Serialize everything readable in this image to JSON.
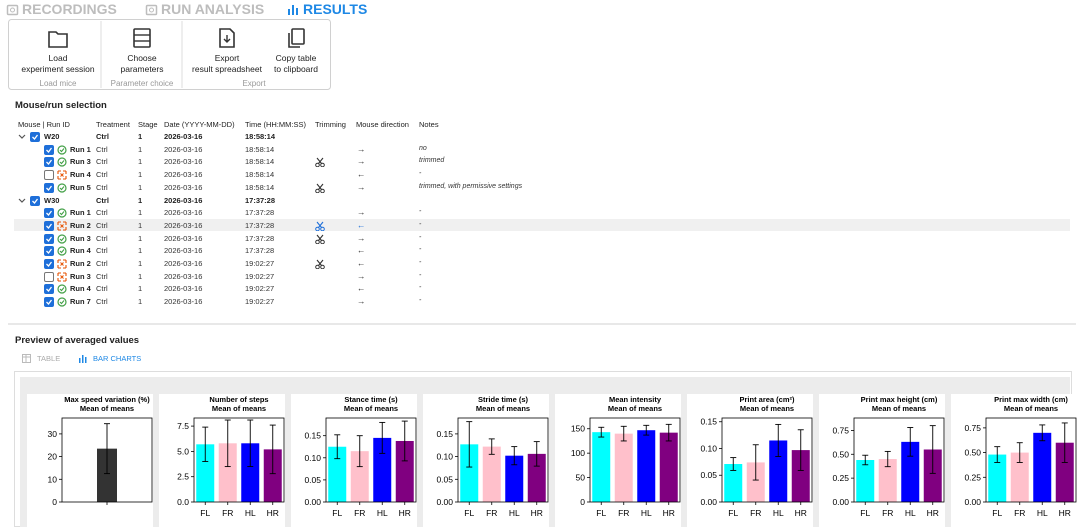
{
  "tabs": [
    "RECORDINGS",
    "RUN ANALYSIS",
    "RESULTS"
  ],
  "active_tab": 2,
  "ribbon": [
    {
      "label": "Load mice",
      "buttons": [
        [
          "Load",
          "experiment session"
        ]
      ]
    },
    {
      "label": "Parameter choice",
      "buttons": [
        [
          "Choose",
          "parameters"
        ]
      ]
    },
    {
      "label": "Export",
      "buttons": [
        [
          "Export",
          "result spreadsheet"
        ],
        [
          "Copy table",
          "to clipboard"
        ]
      ]
    }
  ],
  "selection": {
    "title": "Mouse/run selection",
    "columns": [
      "Mouse | Run ID",
      "Treatment",
      "Stage",
      "Date (YYYY-MM-DD)",
      "Time (HH:MM:SS)",
      "Trimming",
      "Mouse direction",
      "Notes"
    ],
    "mice": [
      {
        "id": "W20",
        "treatment": "Ctrl",
        "stage": 1,
        "date": "2026-03-16",
        "time": "18:58:14",
        "runs": [
          {
            "id": "Run 1",
            "checked": true,
            "ok": true,
            "treatment": "Ctrl",
            "stage": 1,
            "date": "2026-03-16",
            "time": "18:58:14",
            "trimmed": false,
            "direction": "→",
            "notes": "no"
          },
          {
            "id": "Run 3",
            "checked": true,
            "ok": true,
            "treatment": "Ctrl",
            "stage": 1,
            "date": "2026-03-16",
            "time": "18:58:14",
            "trimmed": true,
            "direction": "→",
            "notes": "trimmed"
          },
          {
            "id": "Run 4",
            "checked": false,
            "ok": false,
            "treatment": "Ctrl",
            "stage": 1,
            "date": "2026-03-16",
            "time": "18:58:14",
            "trimmed": false,
            "direction": "←",
            "notes": "-"
          },
          {
            "id": "Run 5",
            "checked": true,
            "ok": true,
            "treatment": "Ctrl",
            "stage": 1,
            "date": "2026-03-16",
            "time": "18:58:14",
            "trimmed": true,
            "direction": "→",
            "notes": "trimmed, with permissive settings"
          }
        ]
      },
      {
        "id": "W30",
        "treatment": "Ctrl",
        "stage": 1,
        "date": "2026-03-16",
        "time": "17:37:28",
        "runs": [
          {
            "id": "Run 1",
            "checked": true,
            "ok": true,
            "treatment": "Ctrl",
            "stage": 1,
            "date": "2026-03-16",
            "time": "17:37:28",
            "trimmed": false,
            "direction": "→",
            "notes": "-"
          },
          {
            "id": "Run 2",
            "checked": true,
            "ok": false,
            "treatment": "Ctrl",
            "stage": 1,
            "date": "2026-03-16",
            "time": "17:37:28",
            "trimmed": true,
            "direction": "←",
            "notes": "-",
            "highlighted": true
          },
          {
            "id": "Run 3",
            "checked": true,
            "ok": true,
            "treatment": "Ctrl",
            "stage": 1,
            "date": "2026-03-16",
            "time": "17:37:28",
            "trimmed": true,
            "direction": "→",
            "notes": "-"
          },
          {
            "id": "Run 4",
            "checked": true,
            "ok": true,
            "treatment": "Ctrl",
            "stage": 1,
            "date": "2026-03-16",
            "time": "17:37:28",
            "trimmed": false,
            "direction": "←",
            "notes": "-"
          },
          {
            "id": "Run 2",
            "checked": true,
            "ok": false,
            "treatment": "Ctrl",
            "stage": 1,
            "date": "2026-03-16",
            "time": "19:02:27",
            "trimmed": true,
            "direction": "←",
            "notes": "-"
          },
          {
            "id": "Run 3",
            "checked": false,
            "ok": false,
            "treatment": "Ctrl",
            "stage": 1,
            "date": "2026-03-16",
            "time": "19:02:27",
            "trimmed": false,
            "direction": "→",
            "notes": "-"
          },
          {
            "id": "Run 4",
            "checked": true,
            "ok": true,
            "treatment": "Ctrl",
            "stage": 1,
            "date": "2026-03-16",
            "time": "19:02:27",
            "trimmed": false,
            "direction": "←",
            "notes": "-"
          },
          {
            "id": "Run 7",
            "checked": true,
            "ok": true,
            "treatment": "Ctrl",
            "stage": 1,
            "date": "2026-03-16",
            "time": "19:02:27",
            "trimmed": false,
            "direction": "→",
            "notes": "-"
          }
        ]
      }
    ]
  },
  "preview": {
    "title": "Preview of averaged values",
    "views": [
      "TABLE",
      "BAR CHARTS"
    ],
    "active_view": 1
  },
  "chart_data": [
    {
      "type": "bar",
      "title": "Max speed variation (%)",
      "subtitle": "Mean of means",
      "categories": [
        null
      ],
      "values": [
        23.5
      ],
      "errors": [
        11
      ],
      "colors": [
        "#333333"
      ],
      "ylim": [
        0,
        37
      ],
      "yticks": [
        0,
        10,
        20,
        30
      ]
    },
    {
      "type": "bar",
      "title": "Number of steps",
      "subtitle": "Mean of means",
      "categories": [
        "FL",
        "FR",
        "HL",
        "HR"
      ],
      "values": [
        5.7,
        5.8,
        5.8,
        5.2
      ],
      "errors": [
        1.7,
        2.3,
        2.3,
        2.4
      ],
      "colors": [
        "#00ffff",
        "#ffc0cb",
        "#0000ff",
        "#800080"
      ],
      "ylim": [
        0,
        8.3
      ],
      "yticks": [
        {
          "value": 0,
          "label": "0.0"
        },
        2.5,
        {
          "value": 5,
          "label": "5.0"
        },
        7.5
      ]
    },
    {
      "type": "bar",
      "title": "Stance time (s)",
      "subtitle": "Mean of means",
      "categories": [
        "FL",
        "FR",
        "HL",
        "HR"
      ],
      "values": [
        0.125,
        0.115,
        0.145,
        0.138
      ],
      "errors": [
        0.027,
        0.035,
        0.035,
        0.045
      ],
      "colors": [
        "#00ffff",
        "#ffc0cb",
        "#0000ff",
        "#800080"
      ],
      "ylim": [
        0,
        0.19
      ],
      "yticks": [
        {
          "value": 0,
          "label": "0.00"
        },
        0.05,
        {
          "value": 0.1,
          "label": "0.10"
        },
        0.15
      ]
    },
    {
      "type": "bar",
      "title": "Stride time (s)",
      "subtitle": "Mean of means",
      "categories": [
        "FL",
        "FR",
        "HL",
        "HR"
      ],
      "values": [
        0.127,
        0.122,
        0.102,
        0.106
      ],
      "errors": [
        0.05,
        0.017,
        0.02,
        0.027
      ],
      "colors": [
        "#00ffff",
        "#ffc0cb",
        "#0000ff",
        "#800080"
      ],
      "ylim": [
        0,
        0.185
      ],
      "yticks": [
        {
          "value": 0,
          "label": "0.00"
        },
        0.05,
        {
          "value": 0.1,
          "label": "0.10"
        },
        0.15
      ]
    },
    {
      "type": "bar",
      "title": "Mean intensity",
      "subtitle": "Mean of means",
      "categories": [
        "FL",
        "FR",
        "HL",
        "HR"
      ],
      "values": [
        143,
        140,
        147,
        142
      ],
      "errors": [
        10,
        15,
        10,
        17
      ],
      "colors": [
        "#00ffff",
        "#ffc0cb",
        "#0000ff",
        "#800080"
      ],
      "ylim": [
        0,
        172
      ],
      "yticks": [
        0,
        50,
        100,
        150
      ]
    },
    {
      "type": "bar",
      "title": "Print area (cm²)",
      "subtitle": "Mean of means",
      "categories": [
        "FL",
        "FR",
        "HL",
        "HR"
      ],
      "values": [
        0.071,
        0.074,
        0.115,
        0.097
      ],
      "errors": [
        0.012,
        0.033,
        0.03,
        0.038
      ],
      "colors": [
        "#00ffff",
        "#ffc0cb",
        "#0000ff",
        "#800080"
      ],
      "ylim": [
        0,
        0.157
      ],
      "yticks": [
        {
          "value": 0,
          "label": "0.00"
        },
        0.05,
        {
          "value": 0.1,
          "label": "0.10"
        },
        0.15
      ]
    },
    {
      "type": "bar",
      "title": "Print max height (cm)",
      "subtitle": "Mean of means",
      "categories": [
        "FL",
        "FR",
        "HL",
        "HR"
      ],
      "values": [
        0.44,
        0.45,
        0.63,
        0.55
      ],
      "errors": [
        0.05,
        0.08,
        0.15,
        0.25
      ],
      "colors": [
        "#00ffff",
        "#ffc0cb",
        "#0000ff",
        "#800080"
      ],
      "ylim": [
        0,
        0.88
      ],
      "yticks": [
        {
          "value": 0,
          "label": "0.00"
        },
        0.25,
        {
          "value": 0.5,
          "label": "0.50"
        },
        0.75
      ]
    },
    {
      "type": "bar",
      "title": "Print max width (cm)",
      "subtitle": "Mean of means",
      "categories": [
        "FL",
        "FR",
        "HL",
        "HR"
      ],
      "values": [
        0.48,
        0.5,
        0.7,
        0.6
      ],
      "errors": [
        0.08,
        0.1,
        0.08,
        0.2
      ],
      "colors": [
        "#00ffff",
        "#ffc0cb",
        "#0000ff",
        "#800080"
      ],
      "ylim": [
        0,
        0.85
      ],
      "yticks": [
        {
          "value": 0,
          "label": "0.00"
        },
        0.25,
        {
          "value": 0.5,
          "label": "0.50"
        },
        0.75
      ]
    }
  ]
}
